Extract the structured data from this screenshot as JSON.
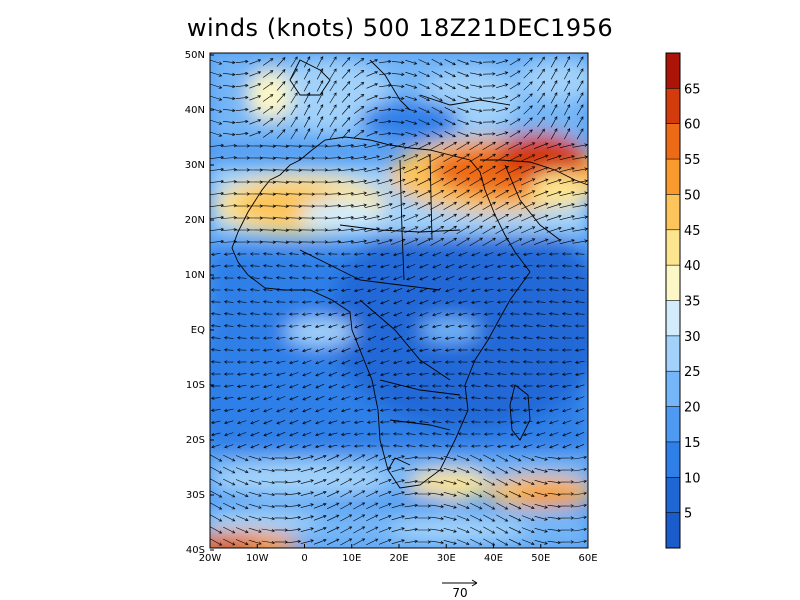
{
  "title": "winds (knots) 500 18Z21DEC1956",
  "lat_labels": [
    "50N",
    "40N",
    "30N",
    "20N",
    "10N",
    "EQ",
    "10S",
    "20S",
    "30S",
    "40S"
  ],
  "lon_labels": [
    "20W",
    "10W",
    "0",
    "10E",
    "20E",
    "30E",
    "40E",
    "50E",
    "60E"
  ],
  "colorbar": {
    "labels": [
      "5",
      "10",
      "15",
      "20",
      "25",
      "30",
      "35",
      "40",
      "45",
      "50",
      "55",
      "60",
      "65"
    ],
    "colors": [
      "#1f67d5",
      "#2f7fe8",
      "#4e9af2",
      "#74b6f7",
      "#a2d2fa",
      "#d2ecfc",
      "#fbf7c6",
      "#fde58f",
      "#fcc45b",
      "#f99a2e",
      "#ed6a16",
      "#d33b0d",
      "#ab1406"
    ]
  },
  "reference_vector": {
    "label": "70"
  },
  "colors": {
    "land_outline": "#000000",
    "arrow": "#000000",
    "background": "#ffffff"
  }
}
